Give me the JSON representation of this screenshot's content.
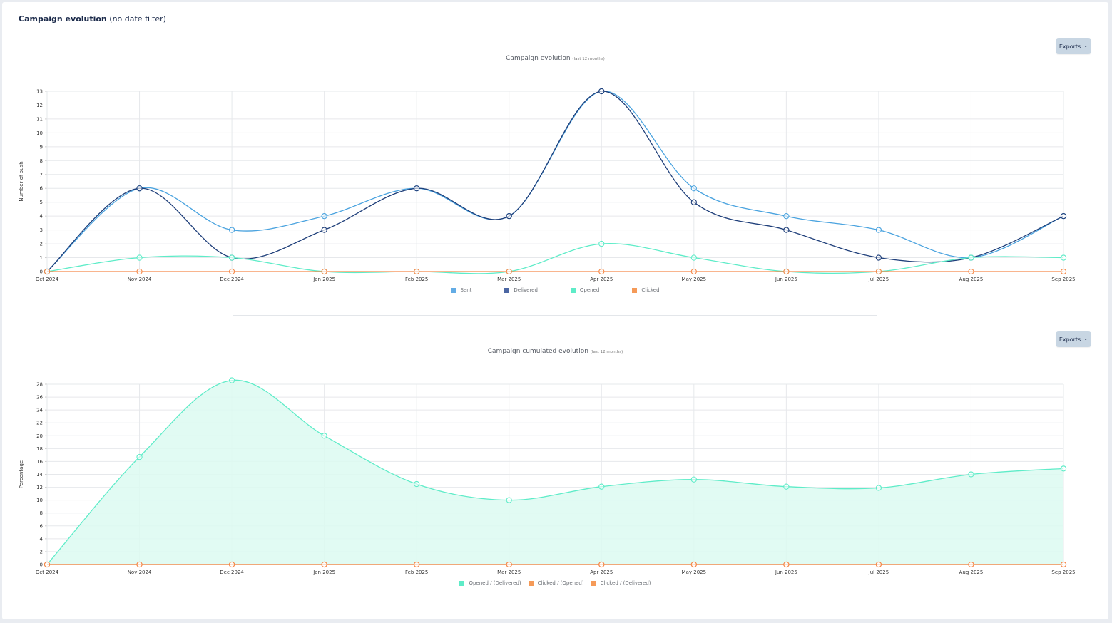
{
  "page": {
    "title_bold": "Campaign evolution",
    "title_light": "(no date filter)",
    "export_label": "Exports"
  },
  "colors": {
    "sent": "#4aa3df",
    "delivered": "#1f3f7a",
    "opened": "#5eecc8",
    "clicked": "#f5894a",
    "delivered_legend": "#4b66a3",
    "opened_fill": "#dcfaf1",
    "clicked_opened_legend": "#f59a58",
    "clicked_delivered_legend": "#f59a58"
  },
  "chart_data": [
    {
      "type": "line",
      "title": "Campaign evolution",
      "subtitle": "(last 12 months)",
      "ylabel": "Number of push",
      "xlabel": "",
      "ylim": [
        0,
        13
      ],
      "yticks": [
        "0",
        "1",
        "2",
        "3",
        "4",
        "5",
        "6",
        "7",
        "8",
        "9",
        "10",
        "11",
        "12",
        "13"
      ],
      "categories": [
        "Oct 2024",
        "Nov 2024",
        "Dec 2024",
        "Jan 2025",
        "Feb 2025",
        "Mar 2025",
        "Apr 2025",
        "May 2025",
        "Jun 2025",
        "Jul 2025",
        "Aug 2025",
        "Sep 2025"
      ],
      "grid": true,
      "legend_position": "bottom",
      "series": [
        {
          "name": "Sent",
          "values": [
            0,
            6,
            3,
            4,
            6,
            4,
            13,
            6,
            4,
            3,
            1,
            4
          ]
        },
        {
          "name": "Delivered",
          "values": [
            0,
            6,
            1,
            3,
            6,
            4,
            13,
            5,
            3,
            1,
            1,
            4
          ]
        },
        {
          "name": "Opened",
          "values": [
            0,
            1,
            1,
            0,
            0,
            0,
            2,
            1,
            0,
            0,
            1,
            1
          ]
        },
        {
          "name": "Clicked",
          "values": [
            0,
            0,
            0,
            0,
            0,
            0,
            0,
            0,
            0,
            0,
            0,
            0
          ]
        }
      ]
    },
    {
      "type": "area",
      "title": "Campaign cumulated evolution",
      "subtitle": "(last 12 months)",
      "ylabel": "Percentage",
      "xlabel": "",
      "ylim": [
        0,
        28
      ],
      "yticks": [
        "0",
        "2",
        "4",
        "6",
        "8",
        "10",
        "12",
        "14",
        "16",
        "18",
        "20",
        "22",
        "24",
        "26",
        "28"
      ],
      "categories": [
        "Oct 2024",
        "Nov 2024",
        "Dec 2024",
        "Jan 2025",
        "Feb 2025",
        "Mar 2025",
        "Apr 2025",
        "May 2025",
        "Jun 2025",
        "Jul 2025",
        "Aug 2025",
        "Sep 2025"
      ],
      "grid": true,
      "legend_position": "bottom",
      "series": [
        {
          "name": "Opened / (Delivered)",
          "values": [
            0,
            16.7,
            28.6,
            20,
            12.5,
            10,
            12.1,
            13.2,
            12.1,
            11.9,
            14,
            14.9
          ]
        },
        {
          "name": "Clicked / (Opened)",
          "values": [
            0,
            0,
            0,
            0,
            0,
            0,
            0,
            0,
            0,
            0,
            0,
            0
          ]
        },
        {
          "name": "Clicked / (Delivered)",
          "values": [
            0,
            0,
            0,
            0,
            0,
            0,
            0,
            0,
            0,
            0,
            0,
            0
          ]
        }
      ]
    }
  ]
}
